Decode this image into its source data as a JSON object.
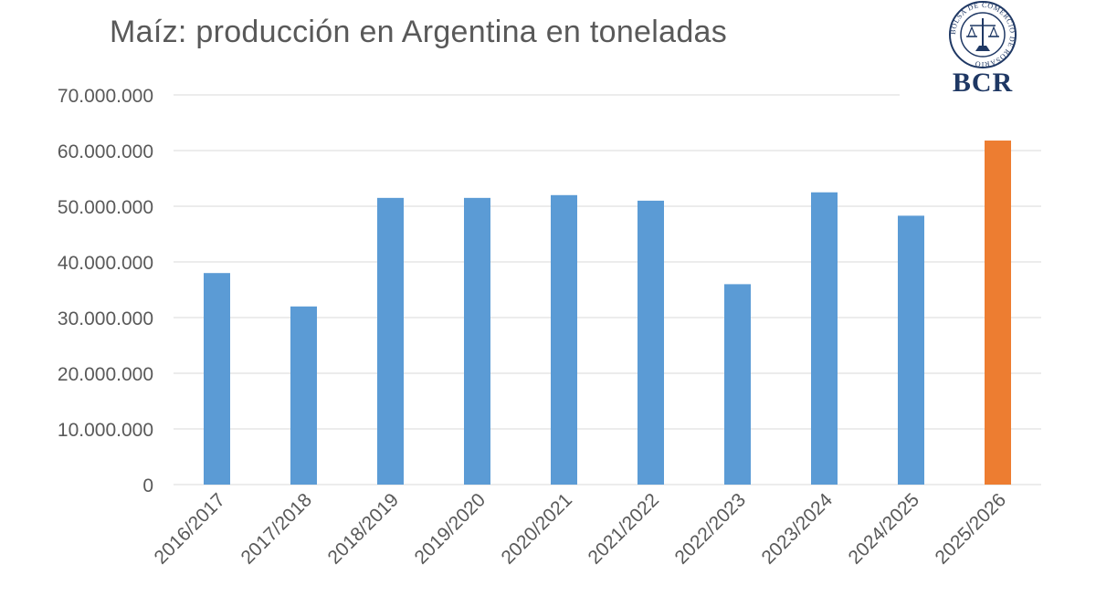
{
  "logo": {
    "text": "BCR",
    "ring_text": "BOLSA DE COMERCIO DE ROSARIO",
    "color": "#1f3864"
  },
  "chart_data": {
    "type": "bar",
    "title": "Maíz: producción en Argentina en toneladas",
    "xlabel": "",
    "ylabel": "",
    "categories": [
      "2016/2017",
      "2017/2018",
      "2018/2019",
      "2019/2020",
      "2020/2021",
      "2021/2022",
      "2022/2023",
      "2023/2024",
      "2024/2025",
      "2025/2026"
    ],
    "values": [
      38000000,
      32000000,
      51500000,
      51500000,
      52000000,
      51000000,
      36000000,
      52500000,
      48300000,
      61800000
    ],
    "colors": [
      "#5b9bd5",
      "#5b9bd5",
      "#5b9bd5",
      "#5b9bd5",
      "#5b9bd5",
      "#5b9bd5",
      "#5b9bd5",
      "#5b9bd5",
      "#5b9bd5",
      "#ed7d31"
    ],
    "ylim": [
      0,
      70000000
    ],
    "yticks": [
      0,
      10000000,
      20000000,
      30000000,
      40000000,
      50000000,
      60000000,
      70000000
    ],
    "ytick_labels": [
      "0",
      "10.000.000",
      "20.000.000",
      "30.000.000",
      "40.000.000",
      "50.000.000",
      "60.000.000",
      "70.000.000"
    ],
    "grid": true,
    "legend": "none"
  }
}
